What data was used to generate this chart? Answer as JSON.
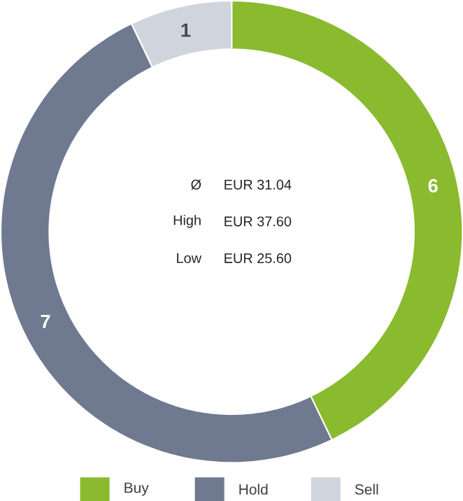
{
  "chart_data": {
    "type": "donut",
    "categories": [
      "Buy",
      "Hold",
      "Sell"
    ],
    "values": [
      6,
      7,
      1
    ],
    "colors": [
      "#8aba2e",
      "#6f7a91",
      "#d0d5dd"
    ],
    "data_labels": true,
    "legend": "bottom",
    "annotations": [
      "Ø",
      "EUR 31.04",
      "High",
      "EUR 37.60",
      "Low",
      "EUR 25.60"
    ]
  }
}
